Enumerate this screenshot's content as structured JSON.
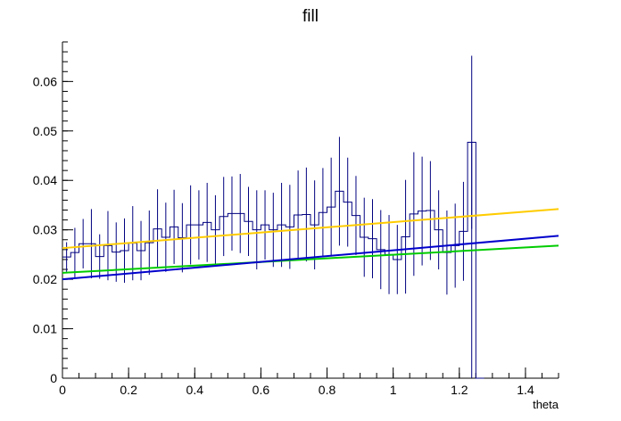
{
  "chart_data": {
    "type": "histogram",
    "title": "fill",
    "xlabel": "theta",
    "ylabel": "",
    "xlim": [
      0,
      1.5
    ],
    "ylim": [
      0,
      0.068
    ],
    "grid": false,
    "legend": "none",
    "x_ticks": [
      0,
      0.2,
      0.4,
      0.6,
      0.8,
      1,
      1.2,
      1.4
    ],
    "x_tick_labels": [
      "0",
      "0.2",
      "0.4",
      "0.6",
      "0.8",
      "1",
      "1.2",
      "1.4"
    ],
    "y_ticks": [
      0,
      0.01,
      0.02,
      0.03,
      0.04,
      0.05,
      0.06
    ],
    "y_tick_labels": [
      "0",
      "0.01",
      "0.02",
      "0.03",
      "0.04",
      "0.05",
      "0.06"
    ],
    "histogram": {
      "bin_width": 0.025,
      "bin_start": 0,
      "color": "#000080",
      "values": [
        0.0245,
        0.0254,
        0.0272,
        0.0272,
        0.0246,
        0.0268,
        0.0255,
        0.0258,
        0.0273,
        0.0258,
        0.0274,
        0.0302,
        0.0285,
        0.0306,
        0.0284,
        0.031,
        0.031,
        0.0315,
        0.03,
        0.0327,
        0.0333,
        0.0333,
        0.0317,
        0.03,
        0.031,
        0.03,
        0.031,
        0.0306,
        0.033,
        0.0331,
        0.031,
        0.0335,
        0.0346,
        0.0378,
        0.0356,
        0.0329,
        0.0285,
        0.0282,
        0.026,
        0.025,
        0.024,
        0.0286,
        0.0332,
        0.0338,
        0.0339,
        0.03,
        0.0254,
        0.0268,
        0.0297,
        0.0477,
        0.0
      ],
      "errors": [
        0.003,
        0.005,
        0.005,
        0.007,
        0.0045,
        0.007,
        0.006,
        0.0065,
        0.0075,
        0.006,
        0.0065,
        0.008,
        0.007,
        0.0075,
        0.007,
        0.008,
        0.007,
        0.008,
        0.007,
        0.008,
        0.0075,
        0.008,
        0.007,
        0.008,
        0.007,
        0.0075,
        0.0085,
        0.0085,
        0.009,
        0.0095,
        0.009,
        0.009,
        0.01,
        0.011,
        0.009,
        0.008,
        0.008,
        0.008,
        0.008,
        0.008,
        0.007,
        0.0115,
        0.0125,
        0.011,
        0.01,
        0.008,
        0.0085,
        0.0085,
        0.01,
        0.0175,
        0.0
      ]
    },
    "series": [
      {
        "color": "#ffcc00",
        "type": "line",
        "x": [
          0,
          1.5
        ],
        "y": [
          0.0263,
          0.0342
        ]
      },
      {
        "color": "#00cc00",
        "type": "line",
        "x": [
          0,
          1.5
        ],
        "y": [
          0.0213,
          0.0268
        ]
      },
      {
        "color": "#0000cc",
        "type": "line",
        "x": [
          0,
          1.5
        ],
        "y": [
          0.02,
          0.0288
        ]
      }
    ]
  }
}
